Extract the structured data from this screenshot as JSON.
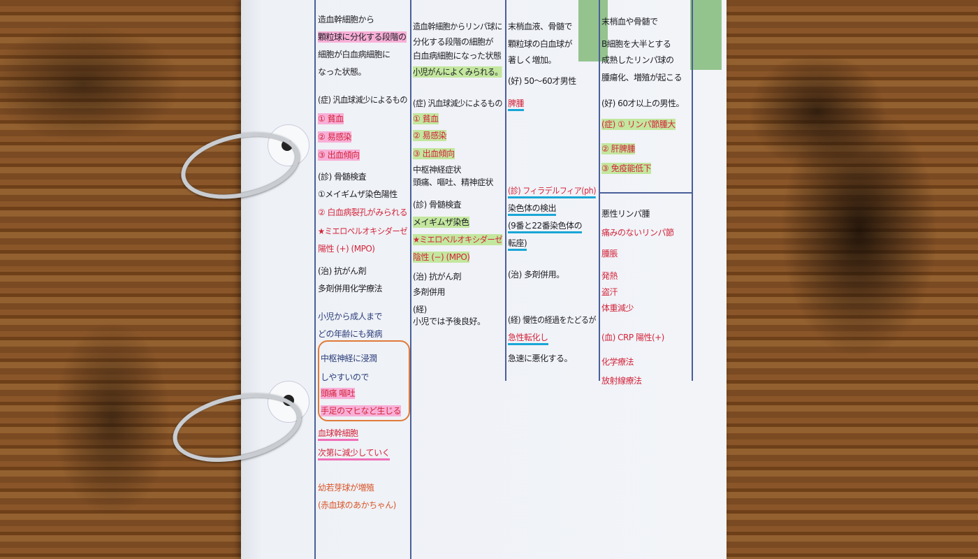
{
  "scene": "binder notebook page on wooden table",
  "colors": {
    "red_pen": "#d3253c",
    "blue_pen": "#2a3d7a",
    "pink_highlight": "#ff78be",
    "green_highlight": "#aae16e",
    "blue_marker": "#1aa6d6",
    "sticky_tab": "#8cbf84"
  },
  "columns": [
    {
      "lines": [
        {
          "t": "造血幹細胞から"
        },
        {
          "t": "顆粒球に分化する段階の",
          "hl": "pink"
        },
        {
          "t": "細胞が白血病細胞に"
        },
        {
          "t": "なった状態。"
        },
        {
          "t": "(症) 汎血球減少によるもの"
        },
        {
          "t": "① 貧血",
          "c": "red",
          "hl": "pink"
        },
        {
          "t": "② 易感染",
          "c": "red",
          "hl": "pink"
        },
        {
          "t": "③ 出血傾向",
          "c": "red",
          "hl": "pink"
        },
        {
          "t": "(診) 骨髄検査"
        },
        {
          "t": "①メイギムザ染色陽性"
        },
        {
          "t": "② 白血病裂孔がみられる",
          "c": "red"
        },
        {
          "t": "★ミエロペルオキシダーゼ",
          "c": "red"
        },
        {
          "t": "陽性 (+) (MPO)",
          "c": "red"
        },
        {
          "t": "(治) 抗がん剤"
        },
        {
          "t": "多剤併用化学療法"
        },
        {
          "t": "小児から成人まで",
          "c": "blue"
        },
        {
          "t": "どの年齢にも発病",
          "c": "blue"
        },
        {
          "t": "中枢神経に浸潤",
          "c": "blue"
        },
        {
          "t": "しやすいので",
          "c": "blue"
        },
        {
          "t": "頭痛 嘔吐",
          "c": "red",
          "hl": "pink"
        },
        {
          "t": "手足のマヒなど生じる",
          "c": "red",
          "hl": "pink"
        },
        {
          "t": "血球幹細胞",
          "c": "red",
          "hl": "pinkline"
        },
        {
          "t": "次第に減少していく",
          "c": "red",
          "hl": "pinkline"
        },
        {
          "t": "幼若芽球が増殖",
          "c": "orange"
        },
        {
          "t": "(赤血球のあかちゃん)",
          "c": "orange"
        }
      ]
    },
    {
      "lines": [
        {
          "t": "造血幹細胞からリンパ球に"
        },
        {
          "t": "分化する段階の細胞が"
        },
        {
          "t": "白血病細胞になった状態"
        },
        {
          "t": "小児がんによくみられる。",
          "hl": "green"
        },
        {
          "t": "(症) 汎血球減少によるもの"
        },
        {
          "t": "① 貧血",
          "c": "red",
          "hl": "green"
        },
        {
          "t": "② 易感染",
          "c": "red",
          "hl": "green"
        },
        {
          "t": "③ 出血傾向",
          "c": "red",
          "hl": "green"
        },
        {
          "t": "中枢神経症状"
        },
        {
          "t": "頭痛、嘔吐、精神症状"
        },
        {
          "t": "(診) 骨髄検査"
        },
        {
          "t": "メイギムザ染色",
          "hl": "green"
        },
        {
          "t": "★ミエロペルオキシダーゼ",
          "c": "red",
          "hl": "green"
        },
        {
          "t": "陰性 (−) (MPO)",
          "c": "red",
          "hl": "green"
        },
        {
          "t": "(治) 抗がん剤"
        },
        {
          "t": "多剤併用"
        },
        {
          "t": "(経)"
        },
        {
          "t": "小児では予後良好。"
        }
      ]
    },
    {
      "lines": [
        {
          "t": "末梢血液、骨髄で"
        },
        {
          "t": "顆粒球の白血球が"
        },
        {
          "t": "著しく増加。"
        },
        {
          "t": "(好) 50〜60才男性"
        },
        {
          "t": "脾腫",
          "c": "red",
          "hl": "blue"
        },
        {
          "t": "(診) フィラデルフィア(ph)",
          "c": "red",
          "hl": "blue"
        },
        {
          "t": "染色体の検出",
          "hl": "blue"
        },
        {
          "t": "(9番と22番染色体の",
          "hl": "blue"
        },
        {
          "t": "転座)",
          "hl": "blue"
        },
        {
          "t": "(治) 多剤併用。"
        },
        {
          "t": "(経) 慢性の経過をたどるが"
        },
        {
          "t": "急性転化し",
          "c": "red",
          "hl": "blue"
        },
        {
          "t": "急速に悪化する。"
        }
      ]
    },
    {
      "lines": [
        {
          "t": "末梢血や骨髄で"
        },
        {
          "t": "B細胞を大半とする"
        },
        {
          "t": "成熟したリンパ球の"
        },
        {
          "t": "腫瘍化、増殖が起こる"
        },
        {
          "t": "(好) 60才以上の男性。"
        },
        {
          "t": "(症) ① リンパ節腫大",
          "c": "red",
          "hl": "green"
        },
        {
          "t": "② 肝脾腫",
          "c": "red",
          "hl": "green"
        },
        {
          "t": "③ 免疫能低下",
          "c": "red",
          "hl": "green"
        },
        {
          "t": "悪性リンパ腫"
        },
        {
          "t": "痛みのないリンパ節",
          "c": "red"
        },
        {
          "t": "腫脹",
          "c": "red"
        },
        {
          "t": "発熱",
          "c": "red"
        },
        {
          "t": "盗汗",
          "c": "red"
        },
        {
          "t": "体重減少",
          "c": "red"
        },
        {
          "t": "(血) CRP 陽性(+)",
          "c": "red"
        },
        {
          "t": "化学療法",
          "c": "red"
        },
        {
          "t": "放射線療法",
          "c": "red"
        }
      ]
    }
  ]
}
